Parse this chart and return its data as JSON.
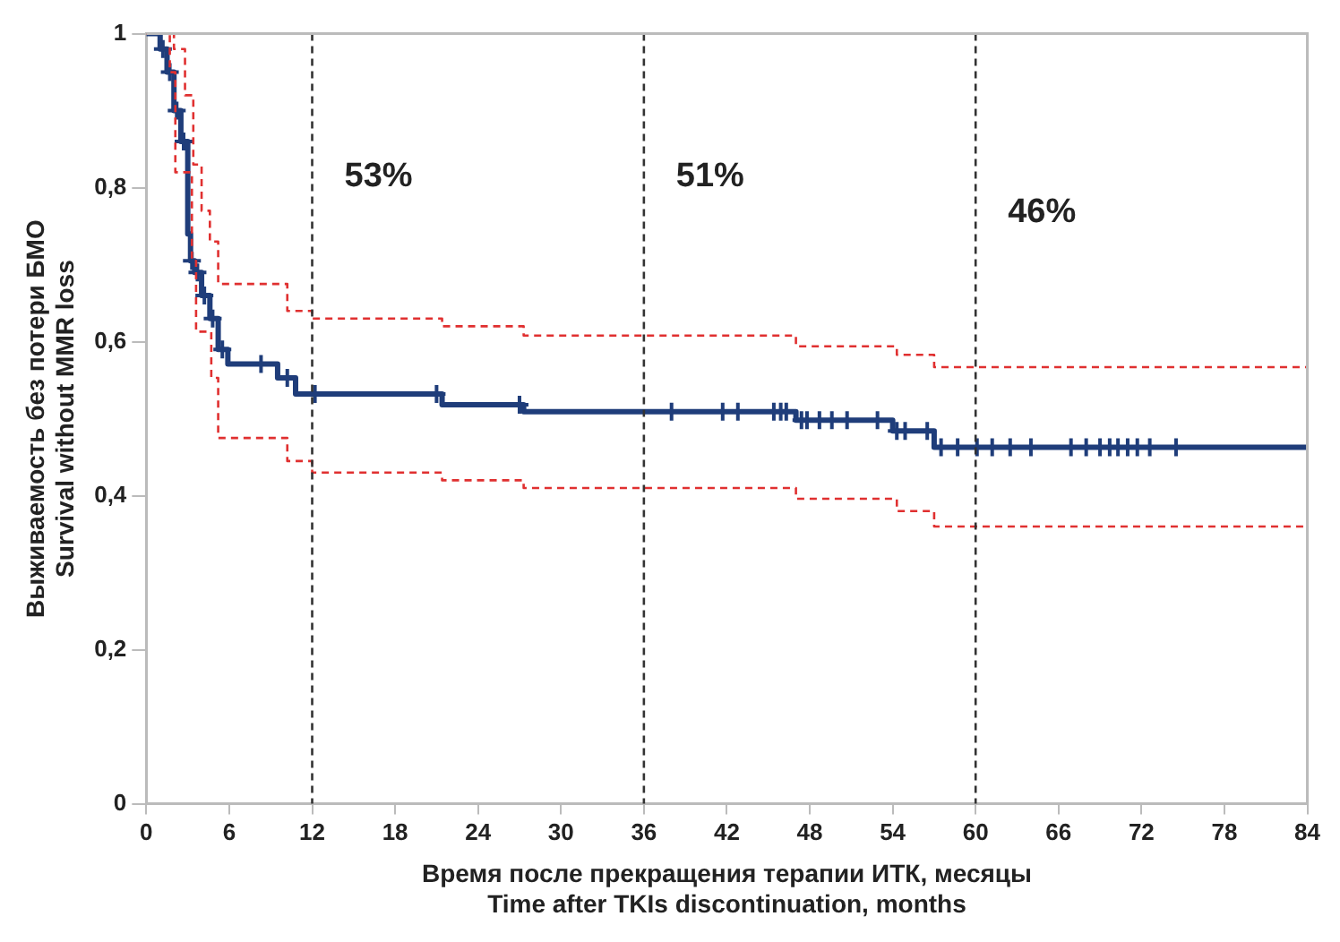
{
  "chart_data": {
    "type": "step",
    "xlabel": "Время после прекращения терапии ИТК, месяцы\nTime after TKIs discontinuation, months",
    "ylabel": "Выживаемость без потери БМО\nSurvival without MMR loss",
    "xlim": [
      0,
      84
    ],
    "xticks": [
      0,
      6,
      12,
      18,
      24,
      30,
      36,
      42,
      48,
      54,
      60,
      66,
      72,
      78,
      84
    ],
    "ylim": [
      0,
      1
    ],
    "yticks": [
      0,
      {
        "value": 0.2,
        "label": "0,2"
      },
      {
        "value": 0.4,
        "label": "0,4"
      },
      {
        "value": 0.6,
        "label": "0,6"
      },
      {
        "value": 0.8,
        "label": "0,8"
      },
      1
    ],
    "grid": false,
    "legend": false,
    "series": [
      {
        "color": "#e03030",
        "line_style": "dashed",
        "x": [
          0,
          2,
          2.8,
          3.4,
          4,
          4.6,
          5.2,
          10.2,
          12,
          21.4,
          27.3,
          47,
          54.3,
          57,
          84
        ],
        "values": [
          1,
          0.98,
          0.92,
          0.83,
          0.77,
          0.73,
          0.675,
          0.64,
          0.63,
          0.62,
          0.608,
          0.594,
          0.583,
          0.567,
          0.567
        ]
      },
      {
        "color": "#e03030",
        "line_style": "dashed",
        "x": [
          0,
          1.7,
          2.1,
          3.3,
          3.6,
          4.7,
          5.2,
          10.2,
          12,
          21.4,
          27.3,
          47,
          54.3,
          57,
          84
        ],
        "values": [
          1,
          0.95,
          0.82,
          0.705,
          0.613,
          0.553,
          0.475,
          0.445,
          0.43,
          0.42,
          0.41,
          0.396,
          0.38,
          0.36,
          0.36
        ]
      },
      {
        "color": "#1f3d7a",
        "line_style": "solid",
        "x": [
          0,
          1,
          1.5,
          2,
          2.5,
          3,
          3.2,
          3.5,
          4,
          4.6,
          5.2,
          5.9,
          9.5,
          10.8,
          21.4,
          27.3,
          47,
          54,
          57,
          84
        ],
        "values": [
          1,
          0.98,
          0.95,
          0.9,
          0.86,
          0.74,
          0.705,
          0.69,
          0.66,
          0.63,
          0.59,
          0.571,
          0.553,
          0.532,
          0.518,
          0.509,
          0.498,
          0.484,
          0.463,
          0.463
        ]
      },
      {
        "type": "scatter",
        "color": "#1f3d7a",
        "marker": "cross",
        "x": [
          1.2,
          1.7,
          2.2,
          2.7,
          3.3,
          3.7,
          4.2,
          4.8,
          5.5,
          8.3,
          10.2,
          12.2,
          21,
          27,
          38,
          41.7,
          42.8,
          45.4,
          45.9,
          46.3,
          47.4,
          47.8,
          48.7,
          49.6,
          50.7,
          52.9,
          54.3,
          54.9,
          56.5,
          57.5,
          58.7,
          60.1,
          61.2,
          62.5,
          64,
          66.9,
          68,
          69,
          69.7,
          70.3,
          71,
          71.7,
          72.6,
          74.5
        ],
        "values": [
          0.98,
          0.95,
          0.9,
          0.86,
          0.705,
          0.69,
          0.66,
          0.63,
          0.59,
          0.571,
          0.553,
          0.532,
          0.532,
          0.518,
          0.509,
          0.509,
          0.509,
          0.509,
          0.509,
          0.509,
          0.498,
          0.498,
          0.498,
          0.498,
          0.498,
          0.498,
          0.484,
          0.484,
          0.484,
          0.463,
          0.463,
          0.463,
          0.463,
          0.463,
          0.463,
          0.463,
          0.463,
          0.463,
          0.463,
          0.463,
          0.463,
          0.463,
          0.463,
          0.463
        ]
      }
    ],
    "ref_lines": [
      {
        "axis": "x",
        "value": 12,
        "color": "#333333",
        "line_style": "dashed"
      },
      {
        "axis": "x",
        "value": 36,
        "color": "#333333",
        "line_style": "dashed"
      },
      {
        "axis": "x",
        "value": 60,
        "color": "#333333",
        "line_style": "dashed"
      }
    ],
    "annotations": [
      "53%",
      "51%",
      "46%"
    ]
  }
}
